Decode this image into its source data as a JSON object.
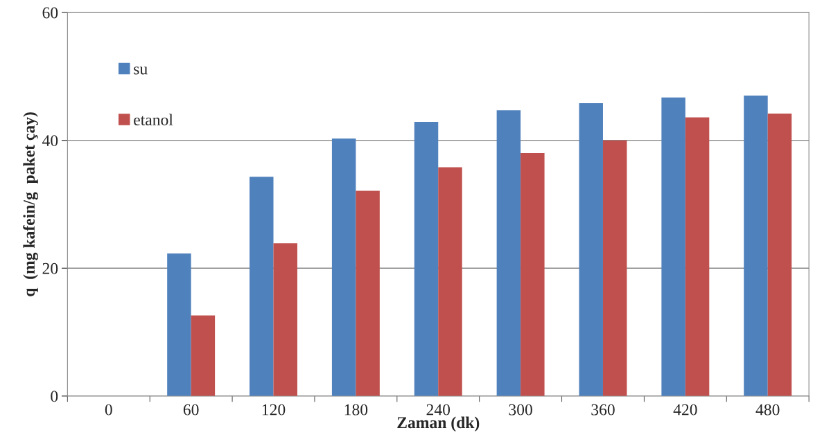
{
  "chart_data": {
    "type": "bar",
    "xlabel": "Zaman (dk)",
    "ylabel": "q  (mg kafein/g  paket çay)",
    "categories": [
      "0",
      "60",
      "120",
      "180",
      "240",
      "300",
      "360",
      "420",
      "480"
    ],
    "series": [
      {
        "name": "su",
        "color": "#4f81bd",
        "values": [
          null,
          22.3,
          34.3,
          40.3,
          42.9,
          44.7,
          45.8,
          46.7,
          47.0
        ]
      },
      {
        "name": "etanol",
        "color": "#c0504d",
        "values": [
          null,
          12.6,
          23.9,
          32.1,
          35.8,
          38.0,
          40.0,
          43.6,
          44.2
        ]
      }
    ],
    "ylim": [
      0,
      60
    ],
    "yticks": [
      0,
      20,
      40,
      60
    ],
    "grid": "y",
    "legend": "top left"
  }
}
